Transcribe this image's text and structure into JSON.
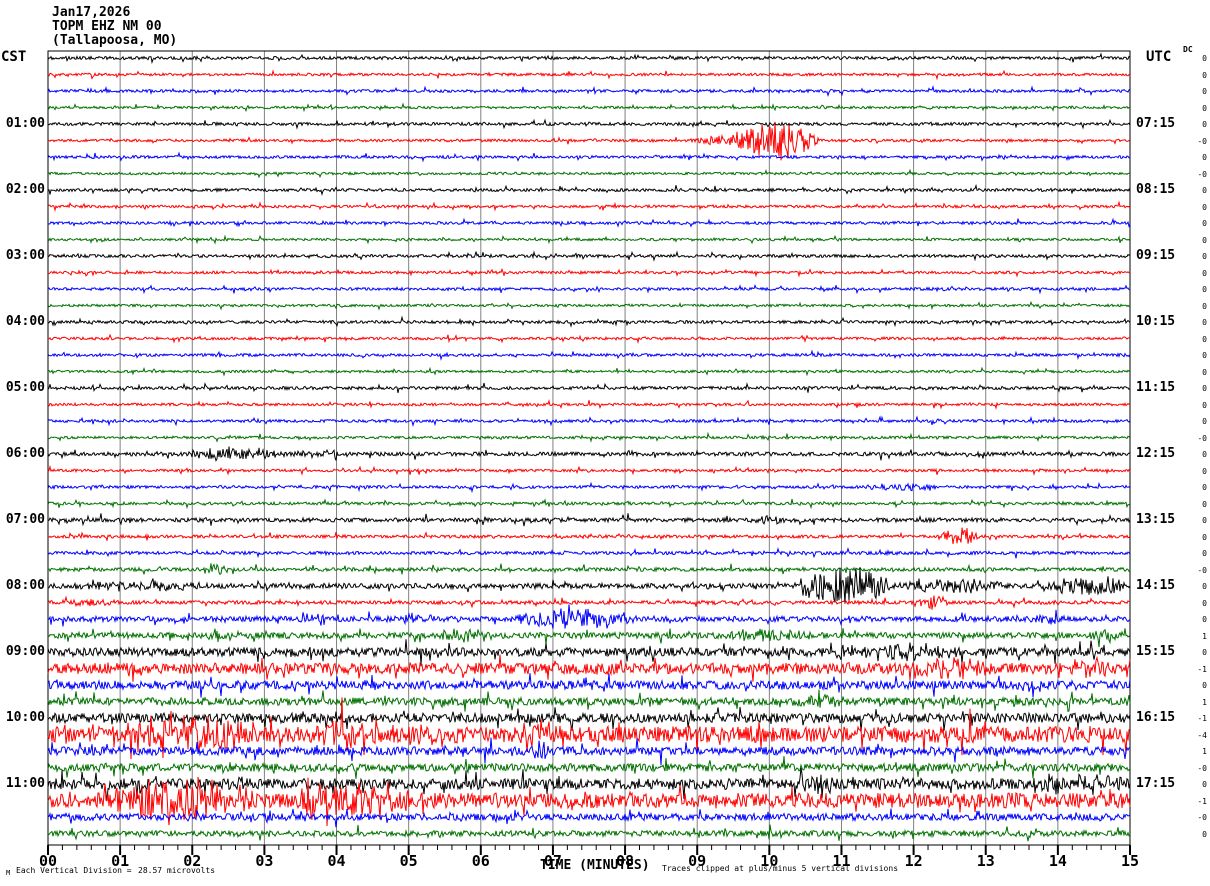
{
  "header": {
    "date": "Jan17,2026",
    "station": "TOPM EHZ NM 00",
    "location": "(Tallapoosa, MO)",
    "left_tz": "CST",
    "right_tz": "UTC",
    "dc_label": "DC"
  },
  "footer": {
    "watermark": "M",
    "scale_label": "Each Vertical Division =",
    "scale_value": "28.57 microvolts",
    "x_axis_title": "TIME (MINUTES)",
    "clip_note": "Traces clipped at plus/minus 5 vertical divisions"
  },
  "chart_data": {
    "type": "line",
    "subtype": "helicorder-seismogram",
    "title": "TOPM EHZ NM 00 (Tallapoosa, MO) Jan17,2026",
    "xlabel": "TIME (MINUTES)",
    "x_min_minutes": 0,
    "x_max_minutes": 15,
    "x_tick_labels": [
      "00",
      "01",
      "02",
      "03",
      "04",
      "05",
      "06",
      "07",
      "08",
      "09",
      "10",
      "11",
      "12",
      "13",
      "14",
      "15"
    ],
    "minor_tick_step_minutes": 0.2,
    "minutes_per_trace_line": 15,
    "traces_per_hour": 4,
    "grid": true,
    "colors": {
      "black": "#000000",
      "red": "#ff0000",
      "blue": "#0000ff",
      "green": "#007000",
      "grid": "#808080",
      "trace_cycle": [
        "black",
        "red",
        "blue",
        "green"
      ]
    },
    "left_hour_labels": [
      "01:00",
      "02:00",
      "03:00",
      "04:00",
      "05:00",
      "06:00",
      "07:00",
      "08:00",
      "09:00",
      "10:00",
      "11:00"
    ],
    "right_hour_labels": [
      "07:15",
      "08:15",
      "09:15",
      "10:15",
      "11:15",
      "12:15",
      "13:15",
      "14:15",
      "15:15",
      "16:15",
      "17:15"
    ],
    "dc_values": [
      "0",
      "0",
      "0",
      "0",
      "0",
      "-0",
      "0",
      "-0",
      "0",
      "0",
      "0",
      "0",
      "0",
      "0",
      "0",
      "0",
      "0",
      "0",
      "0",
      "0",
      "0",
      "0",
      "0",
      "-0",
      "0",
      "0",
      "0",
      "0",
      "0",
      "0",
      "0",
      "-0",
      "0",
      "0",
      "0",
      "1",
      "0",
      "-1",
      "0",
      "1",
      "-1",
      "-4",
      "1",
      "-0",
      "0",
      "-1",
      "-0",
      "0"
    ],
    "traces": [
      {
        "color": "black",
        "noise": 1.5,
        "events": []
      },
      {
        "color": "red",
        "noise": 1.3,
        "events": []
      },
      {
        "color": "blue",
        "noise": 1.4,
        "events": []
      },
      {
        "color": "green",
        "noise": 1.2,
        "events": []
      },
      {
        "color": "black",
        "noise": 1.5,
        "events": []
      },
      {
        "color": "red",
        "noise": 1.3,
        "events": [
          [
            8.9,
            9.5,
            4
          ],
          [
            9.4,
            10.7,
            20
          ]
        ]
      },
      {
        "color": "blue",
        "noise": 1.4,
        "events": []
      },
      {
        "color": "green",
        "noise": 1.2,
        "events": []
      },
      {
        "color": "black",
        "noise": 1.5,
        "events": []
      },
      {
        "color": "red",
        "noise": 1.3,
        "events": []
      },
      {
        "color": "blue",
        "noise": 1.4,
        "events": []
      },
      {
        "color": "green",
        "noise": 1.2,
        "events": []
      },
      {
        "color": "black",
        "noise": 1.5,
        "events": []
      },
      {
        "color": "red",
        "noise": 1.3,
        "events": []
      },
      {
        "color": "blue",
        "noise": 1.4,
        "events": []
      },
      {
        "color": "green",
        "noise": 1.2,
        "events": []
      },
      {
        "color": "black",
        "noise": 1.5,
        "events": []
      },
      {
        "color": "red",
        "noise": 1.3,
        "events": []
      },
      {
        "color": "blue",
        "noise": 1.4,
        "events": []
      },
      {
        "color": "green",
        "noise": 1.2,
        "events": []
      },
      {
        "color": "black",
        "noise": 1.6,
        "events": []
      },
      {
        "color": "red",
        "noise": 1.3,
        "events": []
      },
      {
        "color": "blue",
        "noise": 1.4,
        "events": []
      },
      {
        "color": "green",
        "noise": 1.3,
        "events": []
      },
      {
        "color": "black",
        "noise": 1.9,
        "events": [
          [
            1.9,
            3.3,
            6
          ],
          [
            3.3,
            4.3,
            2.5
          ]
        ]
      },
      {
        "color": "red",
        "noise": 1.3,
        "events": []
      },
      {
        "color": "blue",
        "noise": 1.4,
        "events": [
          [
            11.3,
            12.5,
            3.2
          ]
        ]
      },
      {
        "color": "green",
        "noise": 1.4,
        "events": []
      },
      {
        "color": "black",
        "noise": 2.0,
        "events": [
          [
            9.7,
            10.4,
            3
          ]
        ]
      },
      {
        "color": "red",
        "noise": 1.5,
        "events": [
          [
            12.35,
            12.95,
            9
          ]
        ]
      },
      {
        "color": "blue",
        "noise": 1.6,
        "events": []
      },
      {
        "color": "green",
        "noise": 1.8,
        "events": [
          [
            2.1,
            2.5,
            4
          ]
        ]
      },
      {
        "color": "black",
        "noise": 2.6,
        "events": [
          [
            0.3,
            2.2,
            4
          ],
          [
            10.35,
            11.7,
            21
          ],
          [
            11.7,
            13.3,
            6.5
          ],
          [
            13.85,
            15,
            10
          ]
        ]
      },
      {
        "color": "red",
        "noise": 1.8,
        "events": [
          [
            0.1,
            1.0,
            3
          ],
          [
            12.05,
            12.5,
            7
          ]
        ]
      },
      {
        "color": "blue",
        "noise": 2.6,
        "events": [
          [
            3.3,
            4.0,
            5
          ],
          [
            4.8,
            5.4,
            4.5
          ],
          [
            6.4,
            8.2,
            10
          ],
          [
            13.6,
            14.2,
            5
          ]
        ]
      },
      {
        "color": "green",
        "noise": 3.0,
        "events": [
          [
            2.15,
            2.5,
            5
          ],
          [
            5.3,
            6.2,
            5
          ],
          [
            9.3,
            10.7,
            5
          ],
          [
            14.3,
            15,
            4.5
          ]
        ]
      },
      {
        "color": "black",
        "noise": 4.2,
        "events": [
          [
            3.55,
            3.8,
            7
          ],
          [
            10.7,
            12.8,
            7
          ]
        ]
      },
      {
        "color": "red",
        "noise": 5.5,
        "events": [
          [
            11.7,
            13.1,
            9
          ],
          [
            14.2,
            15,
            6
          ]
        ]
      },
      {
        "color": "blue",
        "noise": 4.2,
        "events": []
      },
      {
        "color": "green",
        "noise": 3.8,
        "events": [
          [
            10.2,
            11.2,
            5
          ]
        ]
      },
      {
        "color": "black",
        "noise": 4.8,
        "events": []
      },
      {
        "color": "red",
        "noise": 8.0,
        "events": [
          [
            0.8,
            2.9,
            16
          ],
          [
            3.7,
            4.4,
            14
          ],
          [
            5.1,
            5.7,
            11
          ],
          [
            6.5,
            7.2,
            8
          ]
        ]
      },
      {
        "color": "blue",
        "noise": 4.2,
        "events": [
          [
            6.65,
            6.95,
            9
          ]
        ]
      },
      {
        "color": "green",
        "noise": 3.8,
        "events": []
      },
      {
        "color": "black",
        "noise": 5.5,
        "events": [
          [
            10.3,
            10.9,
            7
          ],
          [
            13.4,
            15,
            8
          ]
        ]
      },
      {
        "color": "red",
        "noise": 7.5,
        "events": [
          [
            0.7,
            3.0,
            18
          ],
          [
            3.4,
            5.1,
            14
          ],
          [
            3.55,
            3.68,
            26
          ]
        ]
      },
      {
        "color": "blue",
        "noise": 3.4,
        "events": []
      },
      {
        "color": "green",
        "noise": 2.8,
        "events": []
      }
    ],
    "clip_note": "Traces clipped at plus/minus 5 vertical divisions",
    "vertical_division_microvolts": 28.57
  }
}
